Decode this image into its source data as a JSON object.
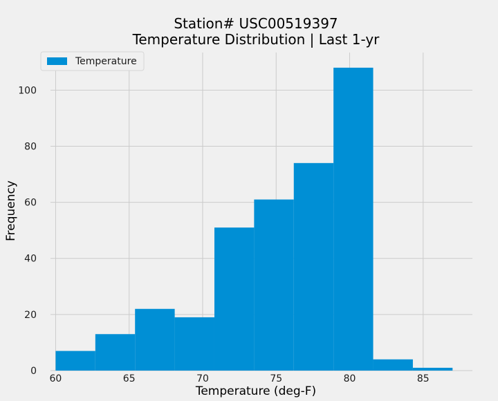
{
  "chart_data": {
    "type": "bar",
    "title_line1": "Station# USC00519397",
    "title_line2": "Temperature Distribution | Last 1-yr",
    "xlabel": "Temperature (deg-F)",
    "ylabel": "Frequency",
    "xlim": [
      59.65,
      88.35
    ],
    "ylim": [
      0,
      113.4
    ],
    "xticks": [
      60,
      65,
      70,
      75,
      80,
      85
    ],
    "yticks": [
      0,
      20,
      40,
      60,
      80,
      100
    ],
    "bins": [
      {
        "x0": 60.0,
        "x1": 62.7,
        "value": 7
      },
      {
        "x0": 62.7,
        "x1": 65.4,
        "value": 13
      },
      {
        "x0": 65.4,
        "x1": 68.1,
        "value": 22
      },
      {
        "x0": 68.1,
        "x1": 70.8,
        "value": 19
      },
      {
        "x0": 70.8,
        "x1": 73.5,
        "value": 51
      },
      {
        "x0": 73.5,
        "x1": 76.2,
        "value": 61
      },
      {
        "x0": 76.2,
        "x1": 78.9,
        "value": 74
      },
      {
        "x0": 78.9,
        "x1": 81.6,
        "value": 108
      },
      {
        "x0": 81.6,
        "x1": 84.3,
        "value": 4
      },
      {
        "x0": 84.3,
        "x1": 87.0,
        "value": 1
      }
    ],
    "series": [
      {
        "name": "Temperature",
        "color": "#008fd5"
      }
    ],
    "legend_position": "top-left",
    "grid": true
  },
  "colors": {
    "background": "#f0f0f0",
    "grid": "#cbcbcb",
    "bar": "#008fd5"
  }
}
